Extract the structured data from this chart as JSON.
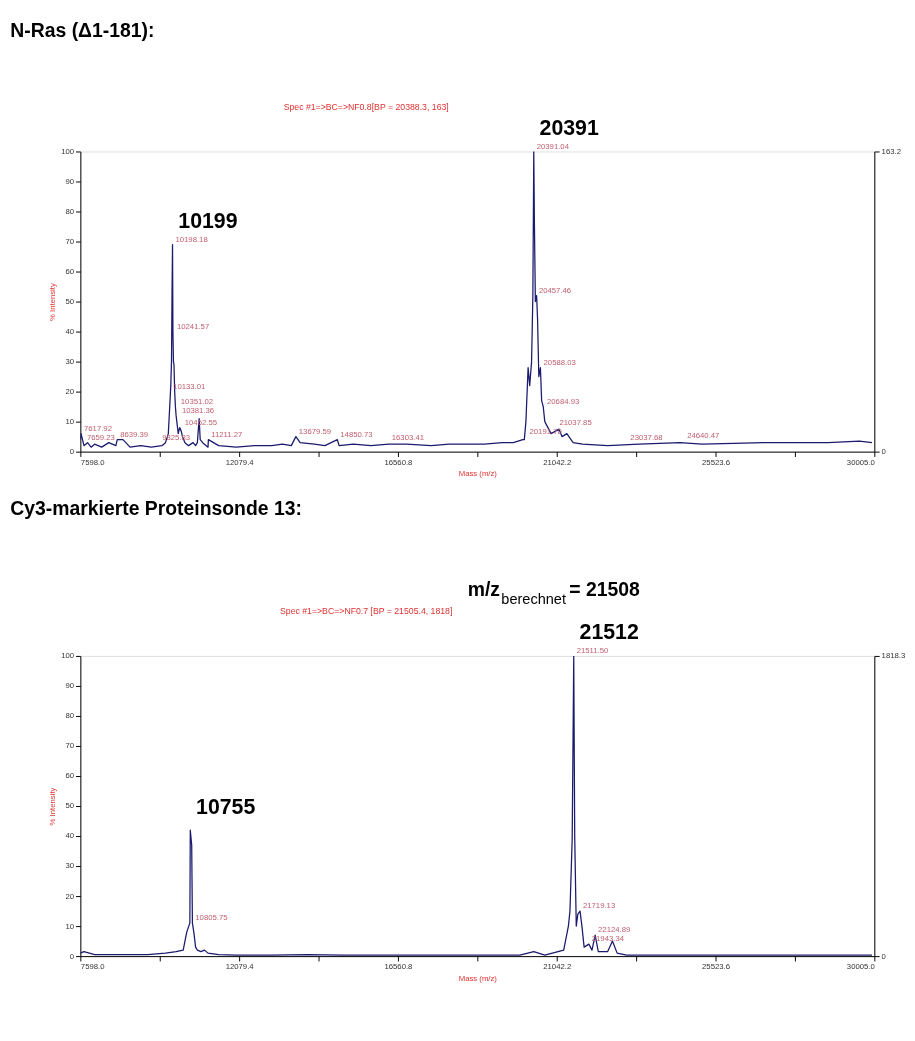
{
  "chart_data": [
    {
      "type": "line",
      "title": "N-Ras (Δ1-181):",
      "subtitle": "Spec #1=>BC=>NF0.8[BP = 20388.3, 163]",
      "xlabel": "Mass (m/z)",
      "ylabel": "% Intensity",
      "x": [
        7598,
        7618,
        7700,
        7800,
        7900,
        8000,
        8200,
        8400,
        8600,
        8639,
        8800,
        9000,
        9300,
        9600,
        9900,
        10000,
        10080,
        10120,
        10150,
        10170,
        10185,
        10199,
        10210,
        10225,
        10240,
        10260,
        10280,
        10300,
        10330,
        10360,
        10400,
        10440,
        10480,
        10550,
        10650,
        10780,
        10850,
        10900,
        10950,
        10980,
        11050,
        11200,
        11211,
        11500,
        12000,
        12500,
        13000,
        13300,
        13550,
        13680,
        13800,
        14200,
        14500,
        14850,
        14900,
        15300,
        15800,
        16300,
        16800,
        17500,
        18000,
        18500,
        19000,
        19500,
        19817,
        20083,
        20127,
        20172,
        20234,
        20279,
        20332,
        20368,
        20394,
        20412,
        20439,
        20474,
        20501,
        20536,
        20581,
        20616,
        20661,
        20705,
        20794,
        20883,
        21105,
        21193,
        21327,
        21504,
        21771,
        22481,
        23369,
        24523,
        25145,
        26921,
        28697,
        29585,
        29940
      ],
      "series": [
        {
          "color": "#1a1a6e",
          "values": [
            4,
            6,
            2,
            3,
            1.5,
            2.5,
            1.5,
            3,
            2,
            4,
            4,
            1.5,
            2,
            1.5,
            2,
            3,
            6,
            15,
            22,
            30,
            53,
            69,
            40,
            30,
            29,
            20,
            15,
            12,
            9,
            6,
            8,
            7,
            5,
            3,
            2,
            3,
            2,
            3,
            11,
            4,
            3,
            1.5,
            4,
            2,
            1.5,
            2,
            2,
            2.5,
            2,
            5,
            3,
            2.5,
            2,
            4,
            2,
            2.5,
            2,
            2.5,
            2.5,
            2,
            2.5,
            2.5,
            2.5,
            3,
            3,
            4,
            4,
            10,
            28,
            22,
            30,
            52,
            100,
            76,
            50,
            52,
            44,
            25,
            28,
            17,
            15,
            10,
            8,
            6,
            7.5,
            5,
            6,
            3,
            2.5,
            2,
            2.5,
            3,
            2.5,
            3,
            3,
            3.5,
            3
          ]
        }
      ],
      "xlim": [
        7598.0,
        30005.0
      ],
      "xticks": [
        {
          "value": 7598.0,
          "label": "7598.0"
        },
        {
          "value": 9838.7,
          "label": null
        },
        {
          "value": 12079.4,
          "label": "12079.4"
        },
        {
          "value": 14320.1,
          "label": null
        },
        {
          "value": 16560.8,
          "label": "16560.8"
        },
        {
          "value": 18801.5,
          "label": null
        },
        {
          "value": 21042.2,
          "label": "21042.2"
        },
        {
          "value": 23282.9,
          "label": null
        },
        {
          "value": 25523.6,
          "label": "25523.6"
        },
        {
          "value": 27764.3,
          "label": null
        },
        {
          "value": 30005.0,
          "label": "30005.0"
        }
      ],
      "ylim": [
        0,
        100
      ],
      "yticks": [
        0,
        10,
        20,
        30,
        40,
        50,
        60,
        70,
        80,
        90,
        100
      ],
      "y2lim": [
        0,
        163.2
      ],
      "y2ticks": [
        0,
        163.2
      ],
      "grid": false,
      "legend": false,
      "marker": "none",
      "line_style": "solid",
      "annotations": [
        {
          "text": "10199",
          "x": 10199,
          "y": 69
        },
        {
          "text": "20391",
          "x": 20394,
          "y": 100
        },
        {
          "text": "7617.92",
          "x": 7618,
          "y": 6
        },
        {
          "text": "7659.23",
          "x": 7700,
          "y": 3
        },
        {
          "text": "8639.39",
          "x": 8639,
          "y": 4
        },
        {
          "text": "9825.83",
          "x": 9826,
          "y": 3
        },
        {
          "text": "10198.18",
          "x": 10199,
          "y": 69
        },
        {
          "text": "10241.57",
          "x": 10241,
          "y": 40
        },
        {
          "text": "10133.01",
          "x": 10133,
          "y": 20
        },
        {
          "text": "10351.02",
          "x": 10351,
          "y": 15
        },
        {
          "text": "10381.36",
          "x": 10381,
          "y": 12
        },
        {
          "text": "10462.55",
          "x": 10462,
          "y": 8
        },
        {
          "text": "11211.27",
          "x": 11211,
          "y": 4
        },
        {
          "text": "13679.59",
          "x": 13680,
          "y": 5
        },
        {
          "text": "14850.73",
          "x": 14851,
          "y": 4
        },
        {
          "text": "16303.41",
          "x": 16303,
          "y": 3
        },
        {
          "text": "20391.04",
          "x": 20394,
          "y": 100
        },
        {
          "text": "20457.46",
          "x": 20457,
          "y": 52
        },
        {
          "text": "20588.03",
          "x": 20588,
          "y": 28
        },
        {
          "text": "20684.93",
          "x": 20685,
          "y": 15
        },
        {
          "text": "20191.70",
          "x": 20191,
          "y": 5
        },
        {
          "text": "21037.85",
          "x": 21037,
          "y": 8
        },
        {
          "text": "23037.68",
          "x": 23038,
          "y": 3
        },
        {
          "text": "24640.47",
          "x": 24640,
          "y": 3.5
        }
      ]
    },
    {
      "type": "line",
      "title": "Cy3-markierte Proteinsonde 13:",
      "subtitle": "Spec #1=>BC=>NF0.7 [BP = 21505.4, 1818]",
      "xlabel": "Mass (m/z)",
      "ylabel": "% Intensity",
      "x": [
        7598,
        7700,
        8000,
        8500,
        9000,
        9500,
        10000,
        10300,
        10500,
        10600,
        10688,
        10700,
        10740,
        10760,
        10800,
        10850,
        10900,
        11000,
        11100,
        11200,
        11500,
        12000,
        13000,
        14000,
        15000,
        16000,
        18000,
        20000,
        20394,
        20705,
        21238,
        21371,
        21415,
        21478,
        21522,
        21549,
        21593,
        21637,
        21699,
        21753,
        21815,
        21948,
        22037,
        22126,
        22215,
        22481,
        22614,
        22747,
        23014,
        24257,
        26921,
        29940
      ],
      "series": [
        {
          "color": "#1a1a6e",
          "values": [
            1,
            1.5,
            0.5,
            0.5,
            0.5,
            0.5,
            1,
            1.5,
            2,
            8,
            11,
            42,
            37,
            11,
            8,
            3,
            2,
            1.5,
            2,
            1,
            0.5,
            0.3,
            0.3,
            0.5,
            0.3,
            0.3,
            0.3,
            0.3,
            1.5,
            0.3,
            2,
            10,
            15,
            39,
            100,
            40,
            10,
            14,
            15,
            10,
            3,
            4,
            2,
            7,
            1.5,
            1.5,
            5,
            1,
            0.3,
            0.3,
            0.3,
            0.3
          ]
        }
      ],
      "xlim": [
        7598.0,
        30005.0
      ],
      "xticks": [
        {
          "value": 7598.0,
          "label": "7598.0"
        },
        {
          "value": 9838.7,
          "label": null
        },
        {
          "value": 12079.4,
          "label": "12079.4"
        },
        {
          "value": 14320.1,
          "label": null
        },
        {
          "value": 16560.8,
          "label": "16560.8"
        },
        {
          "value": 18801.5,
          "label": null
        },
        {
          "value": 21042.2,
          "label": "21042.2"
        },
        {
          "value": 23282.9,
          "label": null
        },
        {
          "value": 25523.6,
          "label": "25523.6"
        },
        {
          "value": 27764.3,
          "label": null
        },
        {
          "value": 30005.0,
          "label": "30005.0"
        }
      ],
      "ylim": [
        0,
        100
      ],
      "yticks": [
        0,
        10,
        20,
        30,
        40,
        50,
        60,
        70,
        80,
        90,
        100
      ],
      "y2lim": [
        0,
        1818.3
      ],
      "y2ticks": [
        0,
        1818.3
      ],
      "grid": false,
      "legend": false,
      "marker": "none",
      "line_style": "solid",
      "annotations": [
        {
          "text": "10755",
          "x": 10700,
          "y": 42
        },
        {
          "text": "21512",
          "x": 21522,
          "y": 100
        },
        "m/z$_{berechnet}$ = 21508",
        {
          "text": "10805.75",
          "x": 10760,
          "y": 11
        },
        {
          "text": "21511.50",
          "x": 21522,
          "y": 100
        },
        {
          "text": "21719.13",
          "x": 21699,
          "y": 15
        },
        {
          "text": "22124.89",
          "x": 22126,
          "y": 7
        },
        {
          "text": "21943.34",
          "x": 21948,
          "y": 4
        }
      ]
    }
  ]
}
